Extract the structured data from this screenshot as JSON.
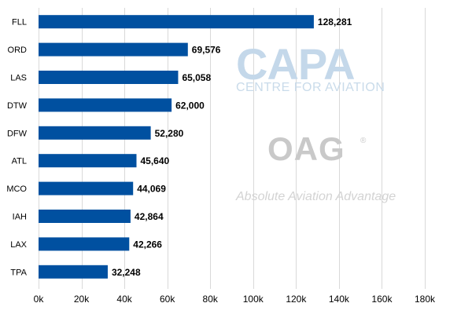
{
  "chart_data": {
    "type": "bar",
    "orientation": "horizontal",
    "categories": [
      "FLL",
      "ORD",
      "LAS",
      "DTW",
      "DFW",
      "ATL",
      "MCO",
      "IAH",
      "LAX",
      "TPA"
    ],
    "values": [
      128281,
      69576,
      65058,
      62000,
      52280,
      45640,
      44069,
      42864,
      42266,
      32248
    ],
    "value_labels": [
      "128,281",
      "69,576",
      "65,058",
      "62,000",
      "52,280",
      "45,640",
      "44,069",
      "42,864",
      "42,266",
      "32,248"
    ],
    "x_ticks": [
      0,
      20000,
      40000,
      60000,
      80000,
      100000,
      120000,
      140000,
      160000,
      180000
    ],
    "x_tick_labels": [
      "0k",
      "20k",
      "40k",
      "60k",
      "80k",
      "100k",
      "120k",
      "140k",
      "160k",
      "180k"
    ],
    "xlim": [
      0,
      180000
    ],
    "grid": "vertical",
    "legend": "none",
    "title": "",
    "xlabel": "",
    "ylabel": "",
    "colors": {
      "bar": "#0050a0",
      "grid": "#d9d9d9",
      "text": "#000000"
    }
  },
  "watermarks": {
    "capa": "CAPA",
    "capa_sub": "CENTRE FOR AVIATION",
    "oag": "OAG",
    "oag_reg": "®",
    "oag_tagline": "Absolute Aviation Advantage"
  }
}
